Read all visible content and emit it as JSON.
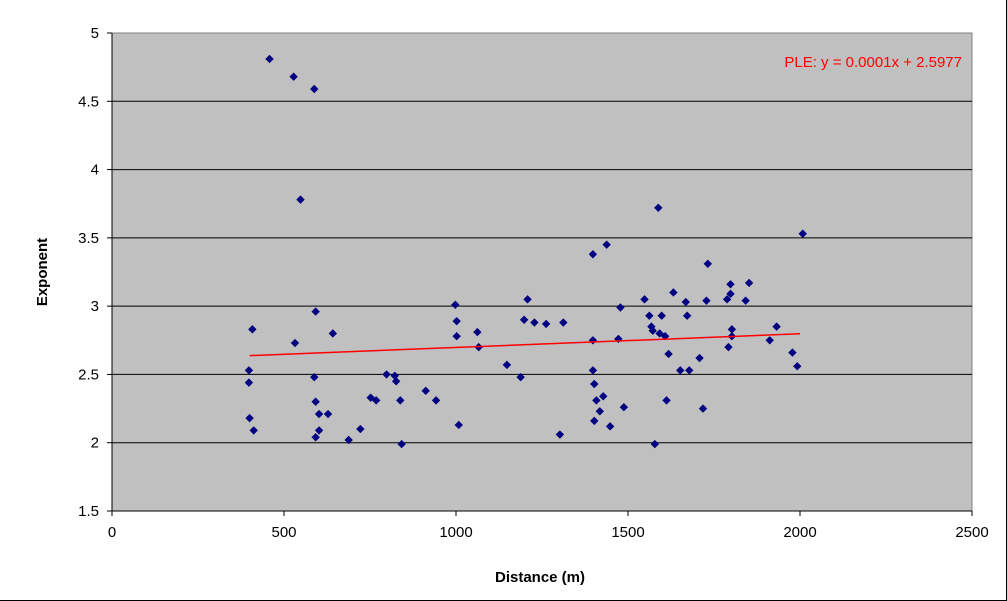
{
  "chart_data": {
    "type": "scatter",
    "title": "",
    "xlabel": "Distance (m)",
    "ylabel": "Exponent",
    "xlim": [
      0,
      2500
    ],
    "ylim": [
      1.5,
      5
    ],
    "xticks": [
      "0",
      "500",
      "1000",
      "1500",
      "2000",
      "2500"
    ],
    "yticks": [
      "1.5",
      "2",
      "2.5",
      "3",
      "3.5",
      "4",
      "4.5",
      "5"
    ],
    "grid": "horizontal",
    "legend": "none",
    "colors": {
      "plot_background": "#c0c0c0",
      "points": "#000080",
      "trendline": "#ff0000",
      "gridlines": "#000000"
    },
    "trendline": {
      "label": "PLE: y = 0.0001x + 2.5977",
      "slope": 0.0001,
      "intercept": 2.5977,
      "x_range": [
        400,
        2000
      ]
    },
    "series": [
      {
        "points": [
          [
            398,
            2.53
          ],
          [
            398,
            2.44
          ],
          [
            400,
            2.18
          ],
          [
            408,
            2.83
          ],
          [
            412,
            2.09
          ],
          [
            458,
            4.81
          ],
          [
            528,
            4.68
          ],
          [
            532,
            2.73
          ],
          [
            548,
            3.78
          ],
          [
            588,
            4.59
          ],
          [
            588,
            2.48
          ],
          [
            592,
            2.96
          ],
          [
            592,
            2.3
          ],
          [
            592,
            2.04
          ],
          [
            602,
            2.21
          ],
          [
            602,
            2.09
          ],
          [
            628,
            2.21
          ],
          [
            642,
            2.8
          ],
          [
            688,
            2.02
          ],
          [
            722,
            2.1
          ],
          [
            752,
            2.33
          ],
          [
            768,
            2.31
          ],
          [
            798,
            2.5
          ],
          [
            822,
            2.49
          ],
          [
            826,
            2.45
          ],
          [
            838,
            2.31
          ],
          [
            842,
            1.99
          ],
          [
            912,
            2.38
          ],
          [
            942,
            2.31
          ],
          [
            998,
            3.01
          ],
          [
            1002,
            2.89
          ],
          [
            1002,
            2.78
          ],
          [
            1008,
            2.13
          ],
          [
            1062,
            2.81
          ],
          [
            1066,
            2.7
          ],
          [
            1148,
            2.57
          ],
          [
            1188,
            2.48
          ],
          [
            1198,
            2.9
          ],
          [
            1208,
            3.05
          ],
          [
            1228,
            2.88
          ],
          [
            1262,
            2.87
          ],
          [
            1302,
            2.06
          ],
          [
            1312,
            2.88
          ],
          [
            1398,
            3.38
          ],
          [
            1398,
            2.75
          ],
          [
            1398,
            2.53
          ],
          [
            1402,
            2.43
          ],
          [
            1402,
            2.16
          ],
          [
            1408,
            2.31
          ],
          [
            1418,
            2.23
          ],
          [
            1428,
            2.34
          ],
          [
            1438,
            3.45
          ],
          [
            1448,
            2.12
          ],
          [
            1472,
            2.76
          ],
          [
            1478,
            2.99
          ],
          [
            1488,
            2.26
          ],
          [
            1548,
            3.05
          ],
          [
            1562,
            2.93
          ],
          [
            1568,
            2.85
          ],
          [
            1572,
            2.82
          ],
          [
            1578,
            1.99
          ],
          [
            1588,
            3.72
          ],
          [
            1592,
            2.8
          ],
          [
            1598,
            2.93
          ],
          [
            1608,
            2.78
          ],
          [
            1612,
            2.31
          ],
          [
            1618,
            2.65
          ],
          [
            1632,
            3.1
          ],
          [
            1652,
            2.53
          ],
          [
            1668,
            3.03
          ],
          [
            1672,
            2.93
          ],
          [
            1678,
            2.53
          ],
          [
            1708,
            2.62
          ],
          [
            1718,
            2.25
          ],
          [
            1728,
            3.04
          ],
          [
            1732,
            3.31
          ],
          [
            1788,
            3.05
          ],
          [
            1792,
            2.7
          ],
          [
            1798,
            3.16
          ],
          [
            1798,
            3.09
          ],
          [
            1802,
            2.83
          ],
          [
            1802,
            2.78
          ],
          [
            1842,
            3.04
          ],
          [
            1852,
            3.17
          ],
          [
            1912,
            2.75
          ],
          [
            1932,
            2.85
          ],
          [
            1978,
            2.66
          ],
          [
            1992,
            2.56
          ],
          [
            2008,
            3.53
          ]
        ]
      }
    ]
  }
}
